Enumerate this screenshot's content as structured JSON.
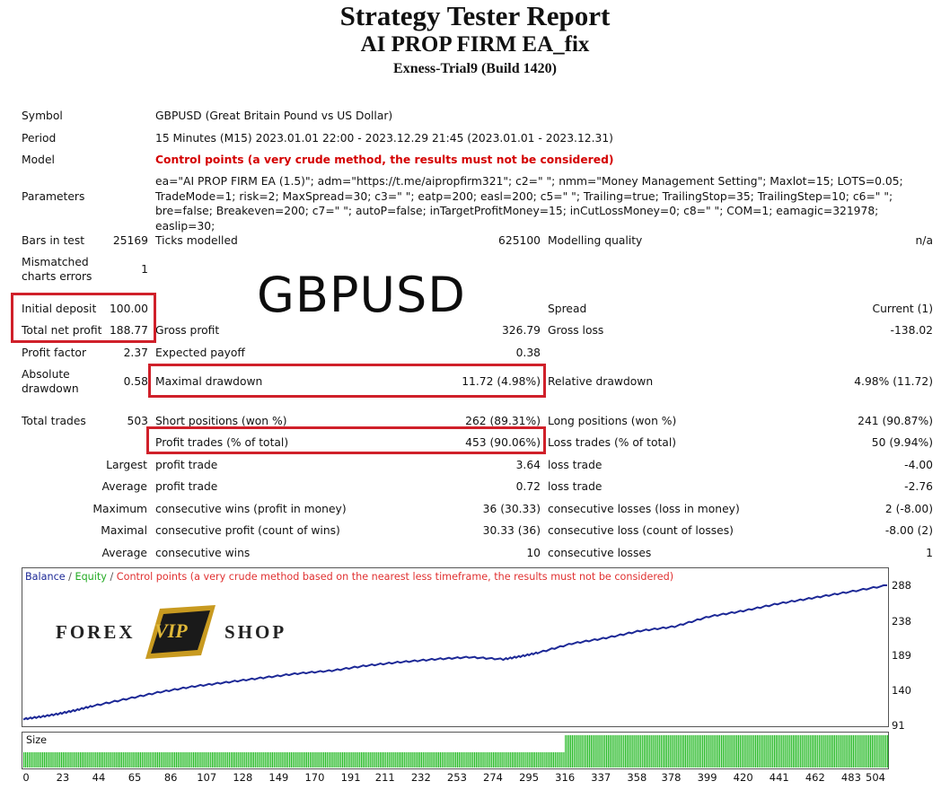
{
  "header": {
    "title": "Strategy Tester Report",
    "ea_name": "AI PROP FIRM EA_fix",
    "server": "Exness-Trial9 (Build 1420)"
  },
  "info": {
    "symbol_label": "Symbol",
    "symbol_value": "GBPUSD (Great Britain Pound vs US Dollar)",
    "period_label": "Period",
    "period_value": "15 Minutes (M15) 2023.01.01 22:00 - 2023.12.29 21:45 (2023.01.01 - 2023.12.31)",
    "model_label": "Model",
    "model_value": "Control points (a very crude method, the results must not be considered)",
    "parameters_label": "Parameters",
    "parameters_value": "ea=\"AI PROP FIRM EA (1.5)\"; adm=\"https://t.me/aipropfirm321\"; c2=\" \"; nmm=\"Money Management Setting\"; Maxlot=15; LOTS=0.05; TradeMode=1; risk=2; MaxSpread=30; c3=\" \"; eatp=200; easl=200; c5=\" \"; Trailing=true; TrailingStop=35; TrailingStep=10; c6=\" \"; bre=false; Breakeven=200; c7=\" \"; autoP=false; inTargetProfitMoney=15; inCutLossMoney=0; c8=\" \"; COM=1; eamagic=321978; easlip=30;"
  },
  "stats": {
    "bars_label": "Bars in test",
    "bars_value": "25169",
    "ticks_label": "Ticks modelled",
    "ticks_value": "625100",
    "quality_label": "Modelling quality",
    "quality_value": "n/a",
    "mismatch_label_1": "Mismatched",
    "mismatch_label_2": "charts errors",
    "mismatch_value": "1",
    "deposit_label": "Initial deposit",
    "deposit_value": "100.00",
    "spread_label": "Spread",
    "spread_value": "Current (1)",
    "netprofit_label": "Total net profit",
    "netprofit_value": "188.77",
    "grossprofit_label": "Gross profit",
    "grossprofit_value": "326.79",
    "grossloss_label": "Gross loss",
    "grossloss_value": "-138.02",
    "pf_label": "Profit factor",
    "pf_value": "2.37",
    "payoff_label": "Expected payoff",
    "payoff_value": "0.38",
    "absdd_label_1": "Absolute",
    "absdd_label_2": "drawdown",
    "absdd_value": "0.58",
    "maxdd_label": "Maximal drawdown",
    "maxdd_value": "11.72 (4.98%)",
    "reldd_label": "Relative drawdown",
    "reldd_value": "4.98% (11.72)",
    "trades_label": "Total trades",
    "trades_value": "503",
    "short_label": "Short positions (won %)",
    "short_value": "262 (89.31%)",
    "long_label": "Long positions (won %)",
    "long_value": "241 (90.87%)",
    "profit_trades_label": "Profit trades (% of total)",
    "profit_trades_value": "453 (90.06%)",
    "loss_trades_label": "Loss trades (% of total)",
    "loss_trades_value": "50 (9.94%)",
    "largest_label": "Largest",
    "largest_profit_label": "profit trade",
    "largest_profit_value": "3.64",
    "largest_loss_label": "loss trade",
    "largest_loss_value": "-4.00",
    "average_label": "Average",
    "average_profit_label": "profit trade",
    "average_profit_value": "0.72",
    "average_loss_label": "loss trade",
    "average_loss_value": "-2.76",
    "maximum_label": "Maximum",
    "max_cons_wins_label": "consecutive wins (profit in money)",
    "max_cons_wins_value": "36 (30.33)",
    "max_cons_losses_label": "consecutive losses (loss in money)",
    "max_cons_losses_value": "2 (-8.00)",
    "maximal_label": "Maximal",
    "maximal_cons_profit_label": "consecutive profit (count of wins)",
    "maximal_cons_profit_value": "30.33 (36)",
    "maximal_cons_loss_label": "consecutive loss (count of losses)",
    "maximal_cons_loss_value": "-8.00 (2)",
    "avg_label": "Average",
    "avg_cons_wins_label": "consecutive wins",
    "avg_cons_wins_value": "10",
    "avg_cons_losses_label": "consecutive losses",
    "avg_cons_losses_value": "1"
  },
  "overlay": {
    "watermark": "GBPUSD",
    "logo_left": "FOREX",
    "logo_mid": "VIP",
    "logo_right": "SHOP"
  },
  "chart_data": {
    "type": "line",
    "legend": {
      "balance": "Balance",
      "sep1": " / ",
      "equity": "Equity",
      "sep2": " / ",
      "control": "Control points (a very crude method based on the nearest less timeframe, the results must not be considered)"
    },
    "y_ticks": [
      "288",
      "238",
      "189",
      "140",
      "91"
    ],
    "ylim": [
      91,
      288
    ],
    "xlim": [
      0,
      504
    ],
    "x_ticks": [
      "0",
      "23",
      "44",
      "65",
      "86",
      "107",
      "128",
      "149",
      "170",
      "191",
      "211",
      "232",
      "253",
      "274",
      "295",
      "316",
      "337",
      "358",
      "378",
      "399",
      "420",
      "441",
      "462",
      "483",
      "504"
    ],
    "size_label": "Size",
    "series": [
      {
        "name": "Balance",
        "x": [
          0,
          10,
          20,
          30,
          40,
          60,
          80,
          100,
          120,
          140,
          160,
          180,
          200,
          220,
          240,
          260,
          280,
          290,
          300,
          320,
          340,
          360,
          380,
          400,
          420,
          440,
          460,
          480,
          504
        ],
        "y": [
          100,
          103,
          107,
          112,
          118,
          128,
          138,
          146,
          152,
          158,
          164,
          168,
          175,
          180,
          184,
          187,
          184,
          188,
          193,
          206,
          214,
          224,
          230,
          244,
          252,
          262,
          270,
          278,
          288
        ]
      }
    ],
    "size_series": {
      "split_trade": 316,
      "low_level": 0.45,
      "high_level": 0.95
    },
    "colors": {
      "balance": "#1c2896",
      "equity": "#22aa22",
      "control": "#e03030",
      "size": "#22b822"
    }
  }
}
